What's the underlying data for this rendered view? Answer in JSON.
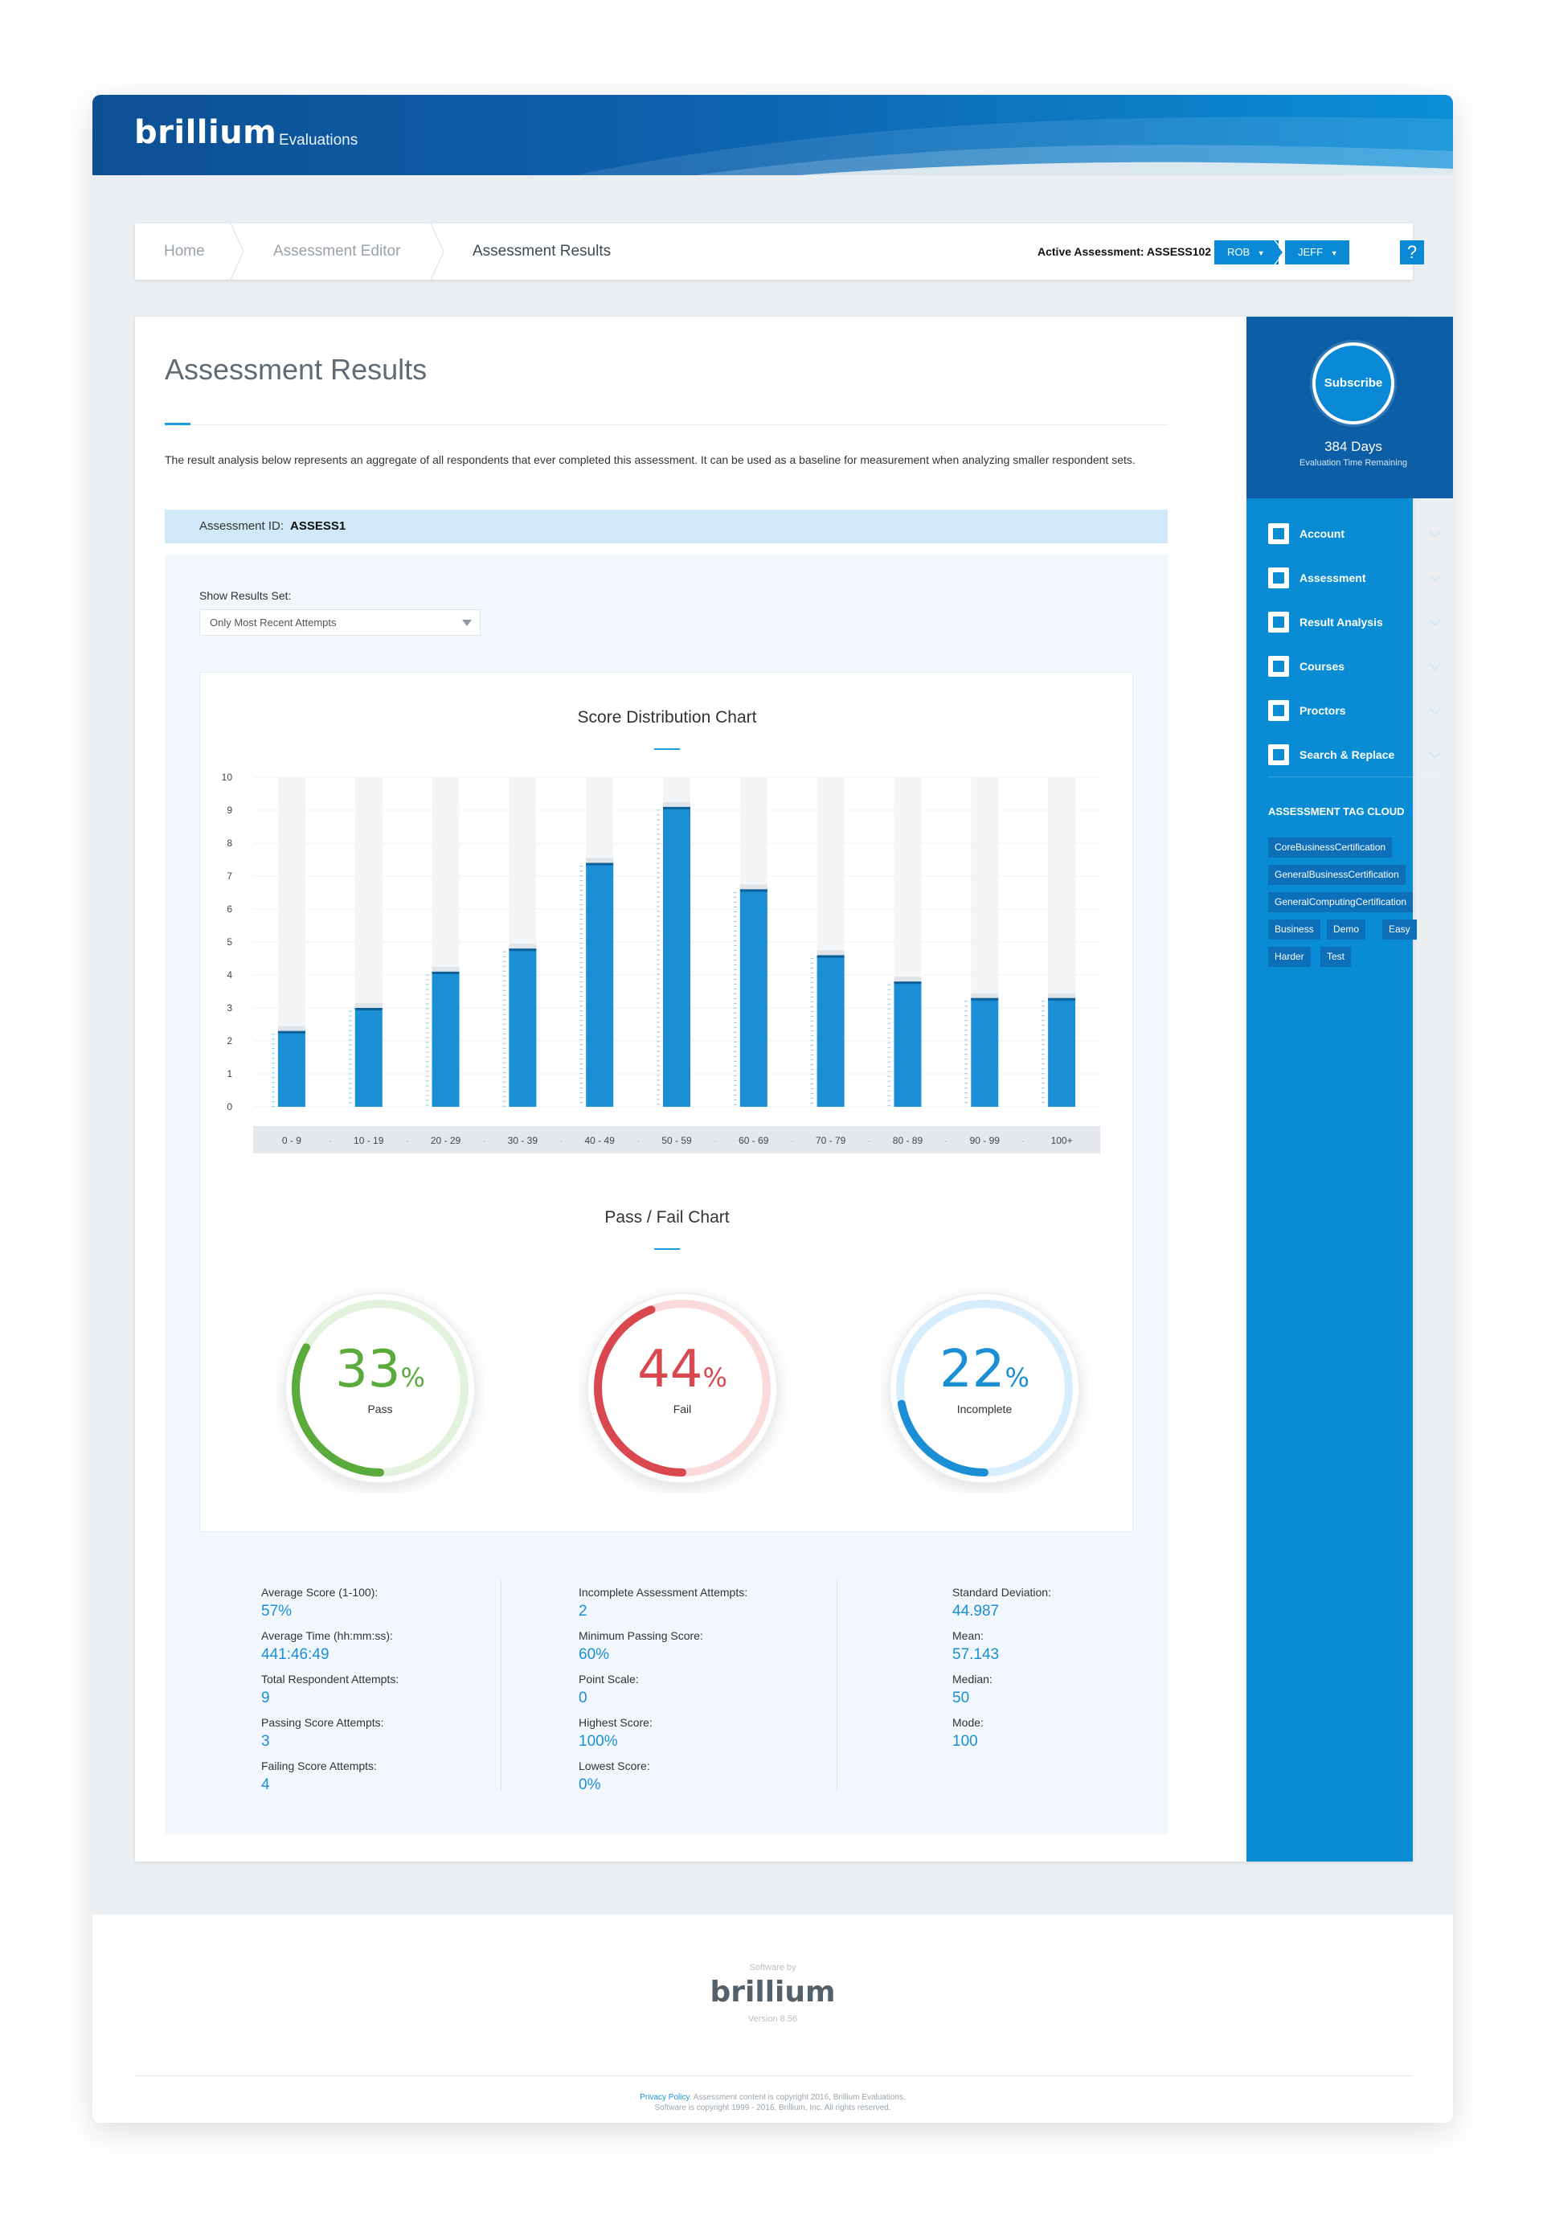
{
  "header": {
    "logo": "brillium",
    "product": "Evaluations"
  },
  "breadcrumb": {
    "items": [
      "Home",
      "Assessment Editor",
      "Assessment Results"
    ],
    "active_assessment": "Active Assessment: ASSESS102",
    "users": [
      "ROB",
      "JEFF"
    ],
    "help": "?"
  },
  "page": {
    "title": "Assessment Results",
    "intro": "The result analysis below represents an aggregate of all respondents that ever completed this assessment. It can be used as a baseline for measurement when analyzing smaller respondent sets.",
    "id_label": "Assessment ID:",
    "id_value": "ASSESS1",
    "results_set_label": "Show Results Set:",
    "results_set_value": "Only Most Recent Attempts"
  },
  "chart_data": [
    {
      "type": "bar",
      "title": "Score Distribution Chart",
      "categories": [
        "0 - 9",
        "10 - 19",
        "20 - 29",
        "30 - 39",
        "40 - 49",
        "50 - 59",
        "60 - 69",
        "70 - 79",
        "80 - 89",
        "90 - 99",
        "100+"
      ],
      "values": [
        2.3,
        3,
        4.1,
        4.8,
        7.4,
        9.1,
        6.6,
        4.6,
        3.8,
        3.3,
        3.3
      ],
      "ylim": [
        0,
        10
      ],
      "yticks": [
        "0",
        "1",
        "2",
        "3",
        "4",
        "5",
        "6",
        "7",
        "8",
        "9",
        "10"
      ],
      "grid": true,
      "color": "#1a8fd6"
    },
    {
      "type": "pie",
      "title": "Pass / Fail Chart",
      "slices": [
        {
          "label": "Pass",
          "value": 33,
          "display": "33",
          "color": "#5bab3c",
          "track": "#e3f2dc"
        },
        {
          "label": "Fail",
          "value": 44,
          "display": "44",
          "color": "#d9484e",
          "track": "#fbdadc"
        },
        {
          "label": "Incomplete",
          "value": 22,
          "display": "22",
          "color": "#1a8fd6",
          "track": "#d7edfb"
        }
      ],
      "unit": "%"
    }
  ],
  "stats": {
    "col1": [
      {
        "label": "Average Score (1-100):",
        "value": "57%"
      },
      {
        "label": "Average Time (hh:mm:ss):",
        "value": "441:46:49"
      },
      {
        "label": "Total Respondent Attempts:",
        "value": "9"
      },
      {
        "label": "Passing Score Attempts:",
        "value": "3"
      },
      {
        "label": "Failing Score Attempts:",
        "value": "4"
      }
    ],
    "col2": [
      {
        "label": "Incomplete Assessment Attempts:",
        "value": "2"
      },
      {
        "label": "Minimum Passing Score:",
        "value": "60%"
      },
      {
        "label": "Point Scale:",
        "value": "0"
      },
      {
        "label": "Highest Score:",
        "value": "100%"
      },
      {
        "label": "Lowest Score:",
        "value": "0%"
      }
    ],
    "col3": [
      {
        "label": "Standard Deviation:",
        "value": "44.987"
      },
      {
        "label": "Mean:",
        "value": "57.143"
      },
      {
        "label": "Median:",
        "value": "50"
      },
      {
        "label": "Mode:",
        "value": "100"
      }
    ]
  },
  "sidebar": {
    "subscribe": "Subscribe",
    "days": "384 Days",
    "days_sub": "Evaluation Time Remaining",
    "items": [
      {
        "label": "Account",
        "icon": "user-icon"
      },
      {
        "label": "Assessment",
        "icon": "list-icon"
      },
      {
        "label": "Result Analysis",
        "icon": "clipboard-icon"
      },
      {
        "label": "Courses",
        "icon": "monitor-icon"
      },
      {
        "label": "Proctors",
        "icon": "group-icon"
      },
      {
        "label": "Search & Replace",
        "icon": "search-icon"
      }
    ],
    "tag_cloud_title": "ASSESSMENT TAG CLOUD",
    "tags": [
      "CoreBusinessCertification",
      "GeneralBusinessCertification",
      "GeneralComputingCertification",
      "Business",
      "Demo",
      "Easy",
      "Harder",
      "Test"
    ]
  },
  "footer": {
    "software_by": "Software by",
    "logo": "brillium",
    "version": "Version 8.56",
    "privacy": "Privacy Policy",
    "copyright1": ". Assessment content is copyright 2016, Brillium Evaluations.",
    "copyright2": "Software is copyright 1999 - 2016, Brillium, Inc. All rights reserved."
  }
}
